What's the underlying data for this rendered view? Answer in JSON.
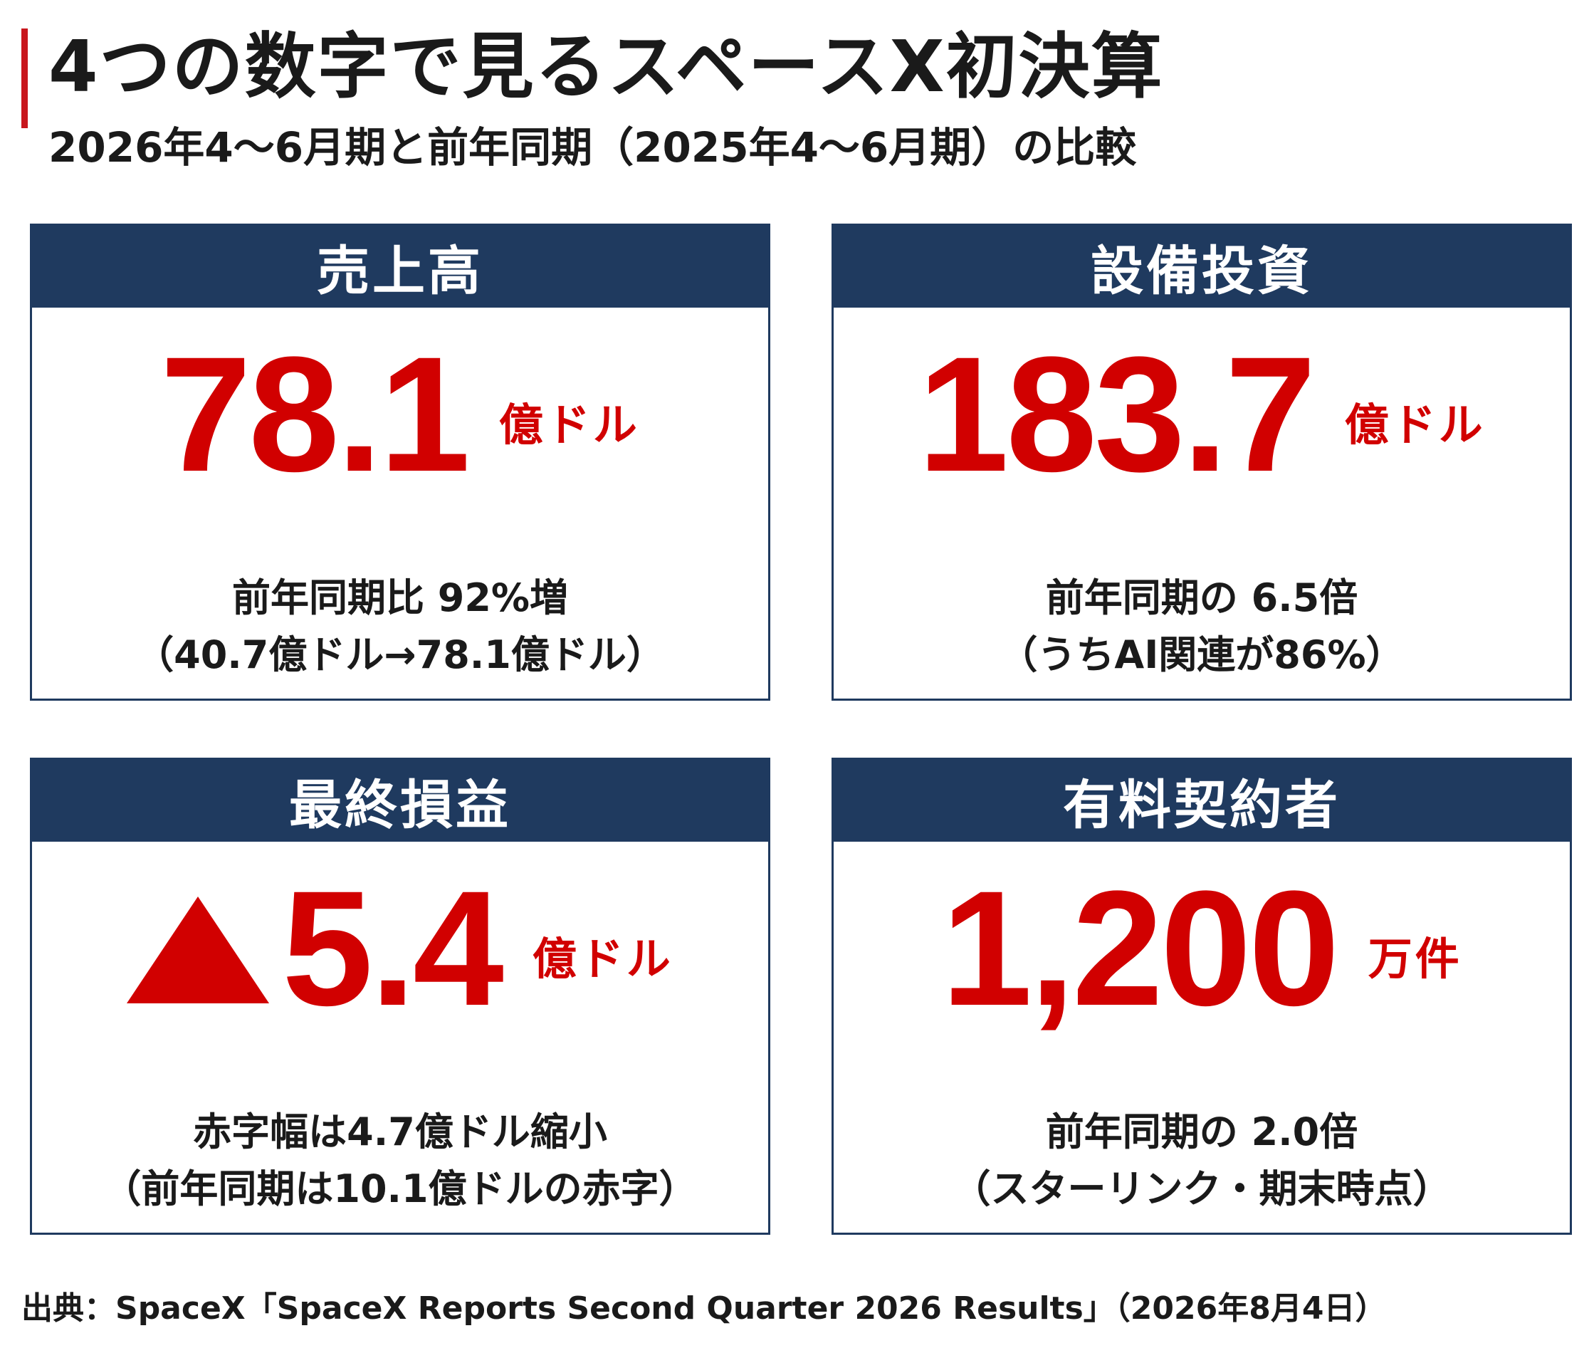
{
  "title": "4つの数字で見るスペースX初決算",
  "subtitle": "2026年4〜6月期と前年同期（2025年4〜6月期）の比較",
  "colors": {
    "accent_red": "#d10000",
    "header_navy": "#1f3a5f",
    "title_bar": "#c8161d"
  },
  "cards": {
    "revenue": {
      "header": "売上高",
      "value": "78.1",
      "unit": "億ドル",
      "note1": "前年同期比 92%増",
      "note2": "（40.7億ドル→78.1億ドル）"
    },
    "capex": {
      "header": "設備投資",
      "value": "183.7",
      "unit": "億ドル",
      "note1": "前年同期の 6.5倍",
      "note2": "（うちAI関連が86%）"
    },
    "net_income": {
      "header": "最終損益",
      "prefix_icon": "red-triangle-icon",
      "value": "5.4",
      "unit": "億ドル",
      "note1": "赤字幅は4.7億ドル縮小",
      "note2": "（前年同期は10.1億ドルの赤字）"
    },
    "subscribers": {
      "header": "有料契約者",
      "value": "1,200",
      "unit": "万件",
      "note1": "前年同期の 2.0倍",
      "note2": "（スターリンク・期末時点）"
    }
  },
  "source": "出典：SpaceX「SpaceX Reports Second Quarter 2026 Results」（2026年8月4日）"
}
